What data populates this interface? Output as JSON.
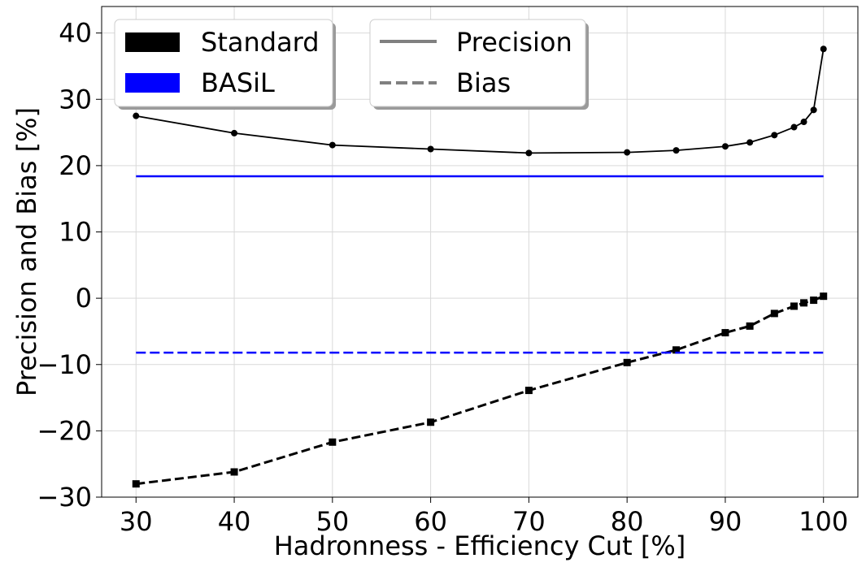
{
  "chart_data": {
    "type": "line",
    "title": "",
    "xlabel": "Hadronness - Efficiency Cut [%]",
    "ylabel": "Precision and Bias [%]",
    "xlim": [
      26.5,
      103.5
    ],
    "ylim": [
      -30,
      44
    ],
    "xticks": [
      30,
      40,
      50,
      60,
      70,
      80,
      90,
      100
    ],
    "yticks": [
      -30,
      -20,
      -10,
      0,
      10,
      20,
      30,
      40
    ],
    "xtick_labels": [
      "30",
      "40",
      "50",
      "60",
      "70",
      "80",
      "90",
      "100"
    ],
    "ytick_labels": [
      "−30",
      "−20",
      "−10",
      "0",
      "10",
      "20",
      "30",
      "40"
    ],
    "grid": true,
    "series": [
      {
        "name": "Standard Precision",
        "method": "Standard",
        "metric": "Precision",
        "color": "#000000",
        "style": "solid",
        "marker": "circle",
        "x": [
          30,
          40,
          50,
          60,
          70,
          80,
          85,
          90,
          92.5,
          95,
          97,
          98,
          99,
          100
        ],
        "values": [
          27.5,
          24.9,
          23.1,
          22.5,
          21.9,
          22.0,
          22.3,
          22.9,
          23.5,
          24.6,
          25.8,
          26.6,
          28.4,
          37.6
        ]
      },
      {
        "name": "Standard Bias",
        "method": "Standard",
        "metric": "Bias",
        "color": "#000000",
        "style": "dashed",
        "marker": "square",
        "x": [
          30,
          40,
          50,
          60,
          70,
          80,
          85,
          90,
          92.5,
          95,
          97,
          98,
          99,
          100
        ],
        "values": [
          -28.0,
          -26.2,
          -21.7,
          -18.7,
          -13.9,
          -9.7,
          -7.8,
          -5.2,
          -4.2,
          -2.3,
          -1.2,
          -0.7,
          -0.3,
          0.3
        ]
      },
      {
        "name": "BASiL Precision",
        "method": "BASiL",
        "metric": "Precision",
        "color": "#0000ff",
        "style": "solid",
        "marker": "none",
        "x": [
          30,
          100
        ],
        "values": [
          18.4,
          18.4
        ]
      },
      {
        "name": "BASiL Bias",
        "method": "BASiL",
        "metric": "Bias",
        "color": "#0000ff",
        "style": "dashed",
        "marker": "none",
        "x": [
          30,
          100
        ],
        "values": [
          -8.2,
          -8.2
        ]
      }
    ],
    "legend_methods": {
      "placement": "upper-left",
      "entries": [
        {
          "label": "Standard",
          "color": "#000000"
        },
        {
          "label": "BASiL",
          "color": "#0000ff"
        }
      ]
    },
    "legend_styles": {
      "placement": "upper-center",
      "entries": [
        {
          "label": "Precision",
          "style": "solid",
          "color": "#808080"
        },
        {
          "label": "Bias",
          "style": "dashed",
          "color": "#808080"
        }
      ]
    }
  }
}
